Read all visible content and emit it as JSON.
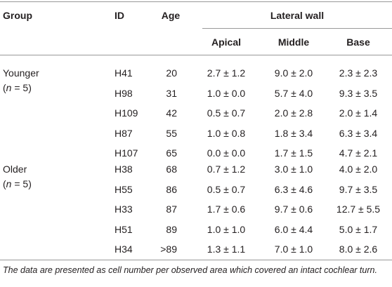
{
  "table": {
    "header": {
      "group": "Group",
      "id": "ID",
      "age": "Age",
      "span": "Lateral wall",
      "columns": [
        "Apical",
        "Middle",
        "Base"
      ]
    },
    "groups": [
      {
        "label": "Younger",
        "count": {
          "prefix": "(",
          "var": "n",
          "suffix": " = 5)"
        },
        "rows": [
          [
            "H41",
            20,
            "2.7 ± 1.2",
            "9.0 ± 2.0",
            "2.3 ± 2.3"
          ],
          [
            "H98",
            31,
            "1.0 ± 0.0",
            "5.7 ± 4.0",
            "9.3 ± 3.5"
          ],
          [
            "H109",
            42,
            "0.5 ± 0.7",
            "2.0 ± 2.8",
            "2.0 ± 1.4"
          ],
          [
            "H87",
            55,
            "1.0 ± 0.8",
            "1.8 ± 3.4",
            "6.3 ± 3.4"
          ],
          [
            "H107",
            65,
            "0.0 ± 0.0",
            "1.7 ± 1.5",
            "4.7 ± 2.1"
          ]
        ]
      },
      {
        "label": "Older",
        "count": {
          "prefix": "(",
          "var": "n",
          "suffix": " = 5)"
        },
        "rows": [
          [
            "H38",
            68,
            "0.7 ± 1.2",
            "3.0 ± 1.0",
            "4.0 ± 2.0"
          ],
          [
            "H55",
            86,
            "0.5 ± 0.7",
            "6.3 ± 4.6",
            "9.7 ± 3.5"
          ],
          [
            "H33",
            87,
            "1.7 ± 0.6",
            "9.7 ± 0.6",
            "12.7 ± 5.5"
          ],
          [
            "H51",
            89,
            "1.0 ± 1.0",
            "6.0 ± 4.4",
            "5.0 ± 1.7"
          ],
          [
            "H34",
            ">89",
            "1.3 ± 1.1",
            "7.0 ± 1.0",
            "8.0 ± 2.6"
          ]
        ]
      }
    ],
    "footnote": "The data are presented as cell number per observed area which covered an intact cochlear turn."
  }
}
